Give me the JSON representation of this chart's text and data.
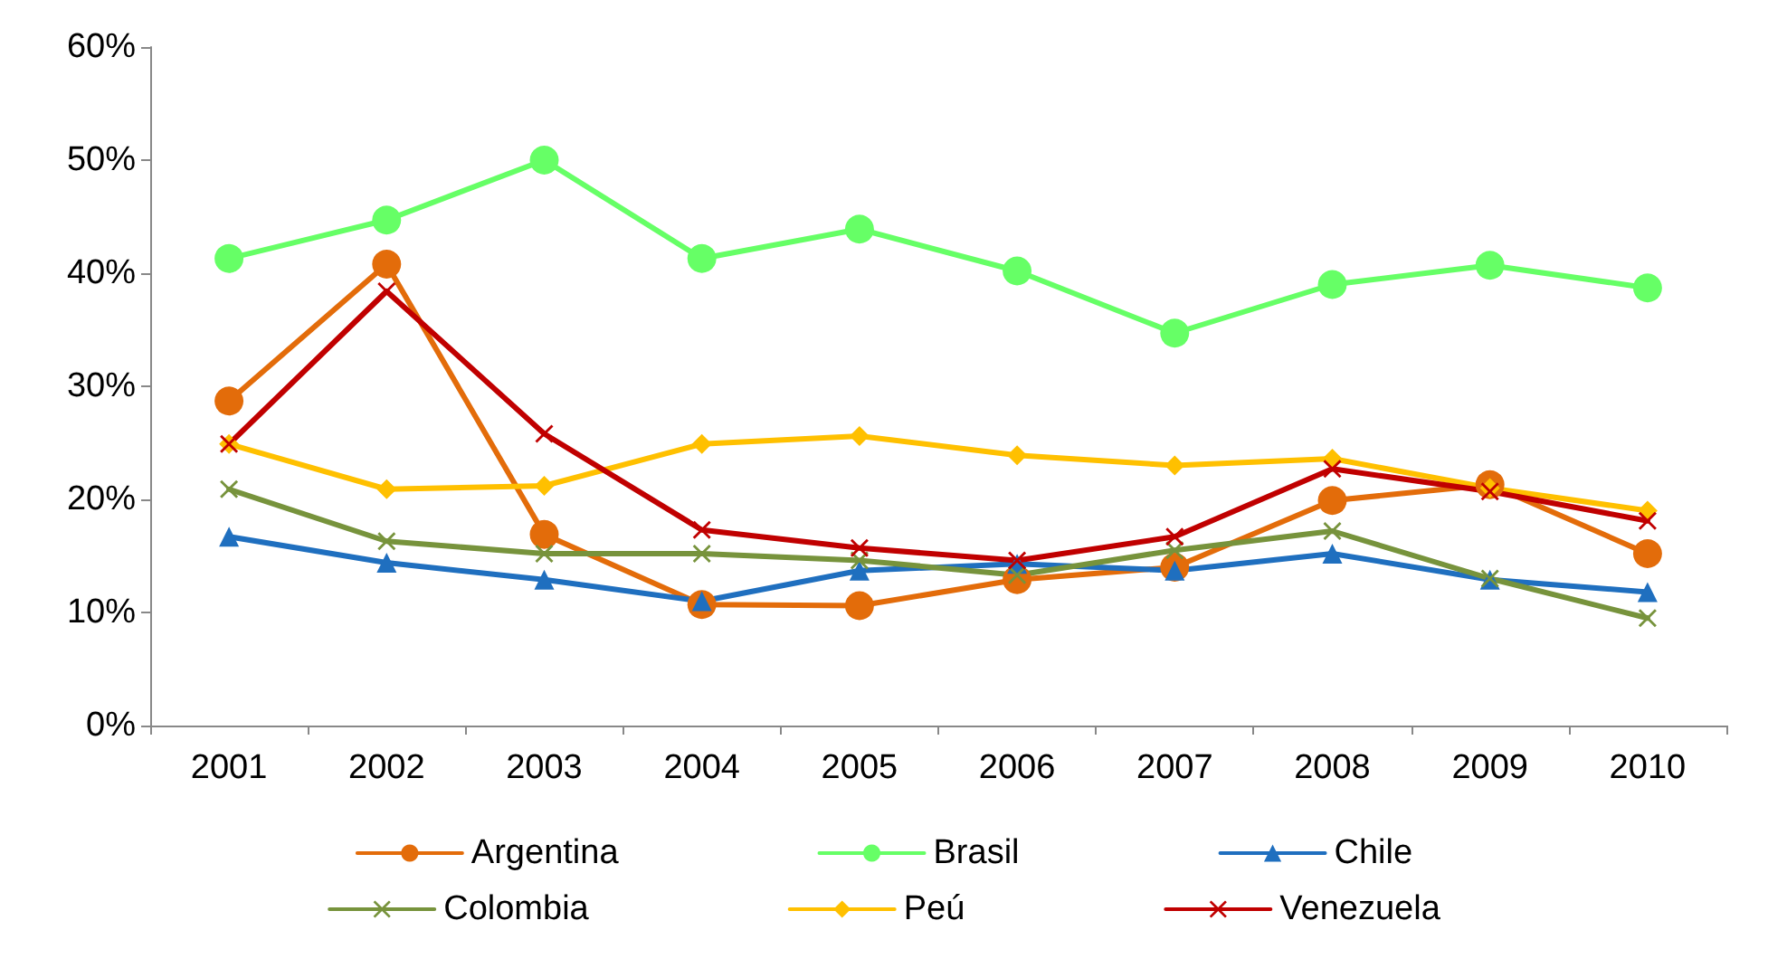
{
  "chart_data": {
    "type": "line",
    "categories": [
      "2001",
      "2002",
      "2003",
      "2004",
      "2005",
      "2006",
      "2007",
      "2008",
      "2009",
      "2010"
    ],
    "series": [
      {
        "name": "Argentina",
        "color": "#e36c0a",
        "marker": "circle",
        "values": [
          28.7,
          40.8,
          16.9,
          10.7,
          10.6,
          12.9,
          14.0,
          19.9,
          21.3,
          15.2
        ]
      },
      {
        "name": "Brasil",
        "color": "#66ff66",
        "marker": "circle",
        "values": [
          41.3,
          44.7,
          50.0,
          41.3,
          43.9,
          40.2,
          34.7,
          39.0,
          40.7,
          38.7
        ]
      },
      {
        "name": "Chile",
        "color": "#1f6fbf",
        "marker": "triangle",
        "values": [
          16.7,
          14.4,
          12.9,
          11.0,
          13.7,
          14.3,
          13.7,
          15.2,
          12.9,
          11.8
        ]
      },
      {
        "name": "Colombia",
        "color": "#77933c",
        "marker": "cross",
        "values": [
          20.9,
          16.3,
          15.2,
          15.2,
          14.6,
          13.3,
          15.5,
          17.2,
          13.0,
          9.5
        ]
      },
      {
        "name": "Peú",
        "color": "#ffc000",
        "marker": "diamond",
        "values": [
          24.9,
          20.9,
          21.2,
          24.9,
          25.6,
          23.9,
          23.0,
          23.6,
          21.0,
          19.0
        ]
      },
      {
        "name": "Venezuela",
        "color": "#c00000",
        "marker": "cross",
        "values": [
          24.9,
          38.4,
          25.8,
          17.3,
          15.7,
          14.6,
          16.7,
          22.7,
          20.7,
          18.1
        ]
      }
    ],
    "ylim": [
      0,
      60
    ],
    "yticks": [
      {
        "value": 0,
        "label": "0%"
      },
      {
        "value": 10,
        "label": "10%"
      },
      {
        "value": 20,
        "label": "20%"
      },
      {
        "value": 30,
        "label": "30%"
      },
      {
        "value": 40,
        "label": "40%"
      },
      {
        "value": 50,
        "label": "50%"
      },
      {
        "value": 60,
        "label": "60%"
      }
    ],
    "grid": false,
    "legend": "bottom",
    "line_style": "solid"
  }
}
